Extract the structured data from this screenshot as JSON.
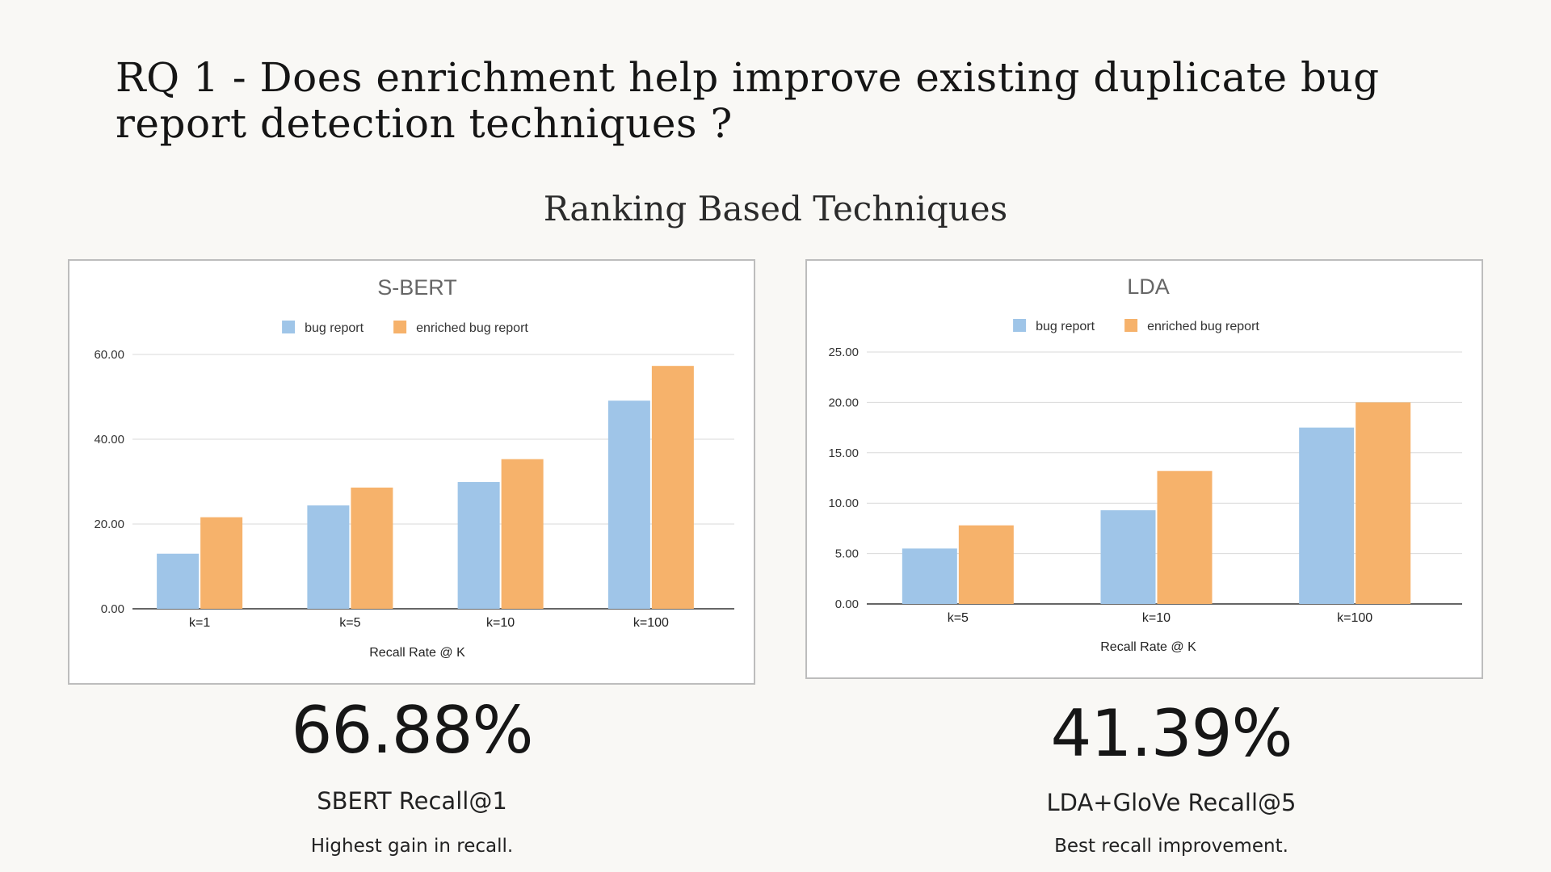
{
  "slide": {
    "title": "RQ 1 - Does enrichment help improve existing duplicate bug report detection techniques ?",
    "subtitle": "Ranking Based Techniques"
  },
  "colors": {
    "bug_report": "#9fc5e8",
    "enriched_bug_report": "#f6b26b",
    "gridline": "#d9d9d9",
    "axis": "#333333"
  },
  "chart_data": [
    {
      "type": "bar",
      "title": "S-BERT",
      "xlabel": "Recall Rate @ K",
      "ylabel": "",
      "categories": [
        "k=1",
        "k=5",
        "k=10",
        "k=100"
      ],
      "series": [
        {
          "name": "bug report",
          "values": [
            13.0,
            24.4,
            29.9,
            49.1
          ]
        },
        {
          "name": "enriched bug report",
          "values": [
            21.6,
            28.6,
            35.3,
            57.3
          ]
        }
      ],
      "ylim": [
        0,
        60
      ],
      "yticks": [
        "0.00",
        "20.00",
        "40.00",
        "60.00"
      ],
      "grid": true,
      "legend": "top-center"
    },
    {
      "type": "bar",
      "title": "LDA",
      "xlabel": "Recall Rate @ K",
      "ylabel": "",
      "categories": [
        "k=5",
        "k=10",
        "k=100"
      ],
      "series": [
        {
          "name": "bug report",
          "values": [
            5.5,
            9.3,
            17.5
          ]
        },
        {
          "name": "enriched bug report",
          "values": [
            7.8,
            13.2,
            20.0
          ]
        }
      ],
      "ylim": [
        0,
        25
      ],
      "yticks": [
        "0.00",
        "5.00",
        "10.00",
        "15.00",
        "20.00",
        "25.00"
      ],
      "grid": true,
      "legend": "top-center"
    }
  ],
  "stats": [
    {
      "value": "66.88%",
      "label": "SBERT Recall@1",
      "description": "Highest gain in recall."
    },
    {
      "value": "41.39%",
      "label": "LDA+GloVe Recall@5",
      "description": "Best recall improvement."
    }
  ]
}
